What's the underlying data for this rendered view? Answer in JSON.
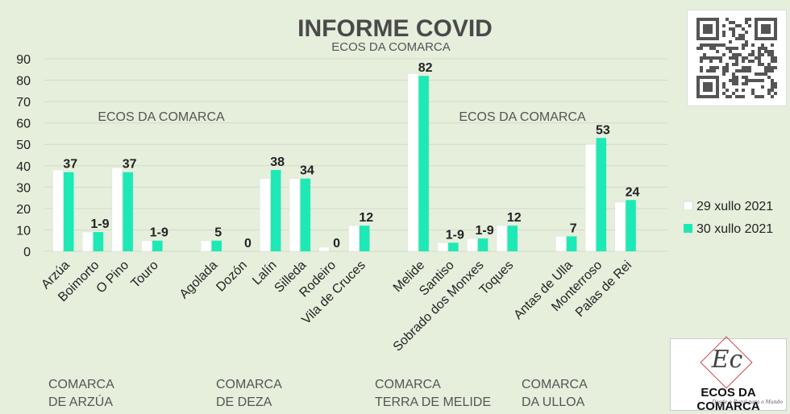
{
  "chart_data": {
    "type": "bar",
    "title": "INFORME COVID",
    "subtitle": "ECOS DA COMARCA",
    "watermarks": [
      "ECOS DA COMARCA",
      "ECOS DA COMARCA"
    ],
    "ylim": [
      0,
      90
    ],
    "yticks": [
      0,
      10,
      20,
      30,
      40,
      50,
      60,
      70,
      80,
      90
    ],
    "grid": true,
    "legend_position": "right",
    "categories": [
      "Arzúa",
      "Boimorto",
      "O Pino",
      "Touro",
      "Agolada",
      "Dozón",
      "Lalín",
      "Silleda",
      "Rodeiro",
      "Vila de Cruces",
      "Melide",
      "Santiso",
      "Sobrado dos Monxes",
      "Toques",
      "Antas de Ulla",
      "Monterroso",
      "Palas de Rei"
    ],
    "series": [
      {
        "name": "29 xullo 2021",
        "color": "#ffffff",
        "values": [
          38,
          9,
          39,
          5,
          5,
          0,
          34,
          34,
          2,
          12,
          83,
          4,
          6,
          12,
          7,
          50,
          23
        ]
      },
      {
        "name": "30 xullo 2021",
        "color": "#1de9b6",
        "values": [
          37,
          9,
          37,
          5,
          5,
          0,
          38,
          34,
          0,
          12,
          82,
          4,
          6,
          12,
          7,
          53,
          24
        ],
        "data_labels": [
          "37",
          "1-9",
          "37",
          "1-9",
          "5",
          "0",
          "38",
          "34",
          "0",
          "12",
          "82",
          "1-9",
          "1-9",
          "12",
          "7",
          "53",
          "24"
        ]
      }
    ],
    "groups": [
      {
        "lines": [
          "COMARCA",
          "DE ARZÚA"
        ],
        "start": 0,
        "end": 3
      },
      {
        "lines": [
          "COMARCA",
          "DE DEZA"
        ],
        "start": 4,
        "end": 9
      },
      {
        "lines": [
          "COMARCA",
          "TERRA DE MELIDE"
        ],
        "start": 10,
        "end": 13
      },
      {
        "lines": [
          "COMARCA",
          "DA ULLOA"
        ],
        "start": 14,
        "end": 16
      }
    ]
  },
  "logo": {
    "letters": "Ec",
    "name": "ECOS DA COMARCA",
    "tagline": "Desde o Rural para o Mundo"
  },
  "qr_icon": "qr-code-icon"
}
